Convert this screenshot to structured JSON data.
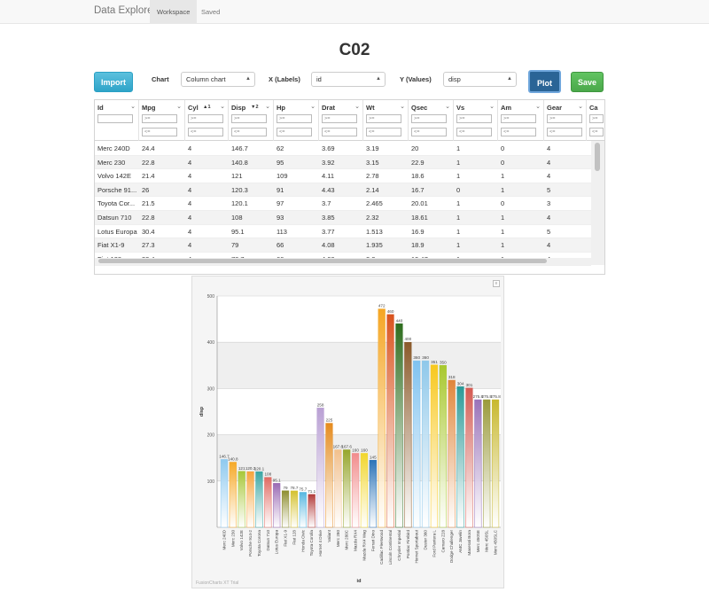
{
  "navbar": {
    "brand": "Data Explorer",
    "tabs": [
      {
        "label": "Workspace",
        "active": true
      },
      {
        "label": "Saved",
        "active": false
      }
    ]
  },
  "page_title": "C02",
  "toolbar": {
    "import_label": "Import",
    "chart_label": "Chart",
    "chart_value": "Column chart",
    "x_label": "X (Labels)",
    "x_value": "id",
    "y_label": "Y (Values)",
    "y_value": "disp",
    "plot_label": "Plot",
    "save_label": "Save"
  },
  "grid": {
    "filter_ge": ">=",
    "filter_le": "<=",
    "menu_glyph": "⌄",
    "columns": [
      {
        "name": "Id",
        "sort": ""
      },
      {
        "name": "Mpg",
        "sort": ""
      },
      {
        "name": "Cyl",
        "sort": "▲1"
      },
      {
        "name": "Disp",
        "sort": "▼2"
      },
      {
        "name": "Hp",
        "sort": ""
      },
      {
        "name": "Drat",
        "sort": ""
      },
      {
        "name": "Wt",
        "sort": ""
      },
      {
        "name": "Qsec",
        "sort": ""
      },
      {
        "name": "Vs",
        "sort": ""
      },
      {
        "name": "Am",
        "sort": ""
      },
      {
        "name": "Gear",
        "sort": ""
      },
      {
        "name": "Ca",
        "sort": ""
      }
    ],
    "rows": [
      [
        "Merc 240D",
        "24.4",
        "4",
        "146.7",
        "62",
        "3.69",
        "3.19",
        "20",
        "1",
        "0",
        "4"
      ],
      [
        "Merc 230",
        "22.8",
        "4",
        "140.8",
        "95",
        "3.92",
        "3.15",
        "22.9",
        "1",
        "0",
        "4"
      ],
      [
        "Volvo 142E",
        "21.4",
        "4",
        "121",
        "109",
        "4.11",
        "2.78",
        "18.6",
        "1",
        "1",
        "4"
      ],
      [
        "Porsche 91...",
        "26",
        "4",
        "120.3",
        "91",
        "4.43",
        "2.14",
        "16.7",
        "0",
        "1",
        "5"
      ],
      [
        "Toyota Cor...",
        "21.5",
        "4",
        "120.1",
        "97",
        "3.7",
        "2.465",
        "20.01",
        "1",
        "0",
        "3"
      ],
      [
        "Datsun 710",
        "22.8",
        "4",
        "108",
        "93",
        "3.85",
        "2.32",
        "18.61",
        "1",
        "1",
        "4"
      ],
      [
        "Lotus Europa",
        "30.4",
        "4",
        "95.1",
        "113",
        "3.77",
        "1.513",
        "16.9",
        "1",
        "1",
        "5"
      ],
      [
        "Fiat X1-9",
        "27.3",
        "4",
        "79",
        "66",
        "4.08",
        "1.935",
        "18.9",
        "1",
        "1",
        "4"
      ],
      [
        "Fiat 128",
        "32.4",
        "4",
        "78.7",
        "66",
        "4.08",
        "2.2",
        "19.47",
        "1",
        "1",
        "4"
      ]
    ]
  },
  "chart_footer": "FusionCharts XT Trial",
  "chart_menu_icon": "≡",
  "chart_data": {
    "type": "bar",
    "xlabel": "id",
    "ylabel": "disp",
    "ylim": [
      0,
      500
    ],
    "yticks": [
      100,
      200,
      300,
      400,
      500
    ],
    "categories": [
      "Merc 240D",
      "Merc 230",
      "Volvo 142E",
      "Porsche 914-2",
      "Toyota Corona",
      "Datsun 710",
      "Lotus Europa",
      "Fiat X1-9",
      "Fiat 128",
      "Honda Civic",
      "Toyota Corolla",
      "Hornet 4 Drive",
      "Valiant",
      "Merc 280",
      "Merc 280C",
      "Mazda RX4",
      "Mazda RX4 Wag",
      "Ferrari Dino",
      "Cadillac Fleetwood",
      "Lincoln Continental",
      "Chrysler Imperial",
      "Pontiac Firebird",
      "Hornet Sportabout",
      "Duster 360",
      "Ford Pantera L",
      "Camaro Z28",
      "Dodge Challenger",
      "AMC Javelin",
      "Maserati Bora",
      "Merc 450SE",
      "Merc 450SL",
      "Merc 450SLC"
    ],
    "values": [
      146.7,
      140.8,
      121,
      120.3,
      120.1,
      108,
      95.1,
      79,
      78.7,
      75.7,
      71.1,
      258,
      225,
      167.6,
      167.6,
      160,
      160,
      145,
      472,
      460,
      440,
      400,
      360,
      360,
      351,
      350,
      318,
      304,
      301,
      275.8,
      275.8,
      275.8
    ],
    "value_labels": [
      "146.7",
      "140.8",
      "121",
      "120.3",
      "120.1",
      "108",
      "95.1",
      "79",
      "78.7",
      "75.7",
      "71.1",
      "258",
      "225",
      "167.6",
      "167.6",
      "160",
      "160",
      "145",
      "472",
      "460",
      "440",
      "400",
      "360",
      "360",
      "351",
      "350",
      "318",
      "304",
      "301",
      "275.8",
      "275.8",
      "275.8"
    ],
    "colors": [
      "#8ec9ef",
      "#f6a928",
      "#a7c738",
      "#f7a33c",
      "#3aa6a4",
      "#e06a62",
      "#9a6bb4",
      "#8e8e2f",
      "#d4c12e",
      "#57b7e0",
      "#b33b3b",
      "#b9a0d4",
      "#e58b1e",
      "#f2c08c",
      "#96a62c",
      "#f28c8c",
      "#f2d62c",
      "#2a73b8",
      "#f5a623",
      "#d9531e",
      "#2e6d1e",
      "#8a5a2a",
      "#7fc2ef",
      "#8fc8ea",
      "#f8c81e",
      "#a8c82e",
      "#e0853a",
      "#2a9a98",
      "#d45a52",
      "#9a72b8",
      "#9a9a3a",
      "#c8b82e"
    ]
  }
}
